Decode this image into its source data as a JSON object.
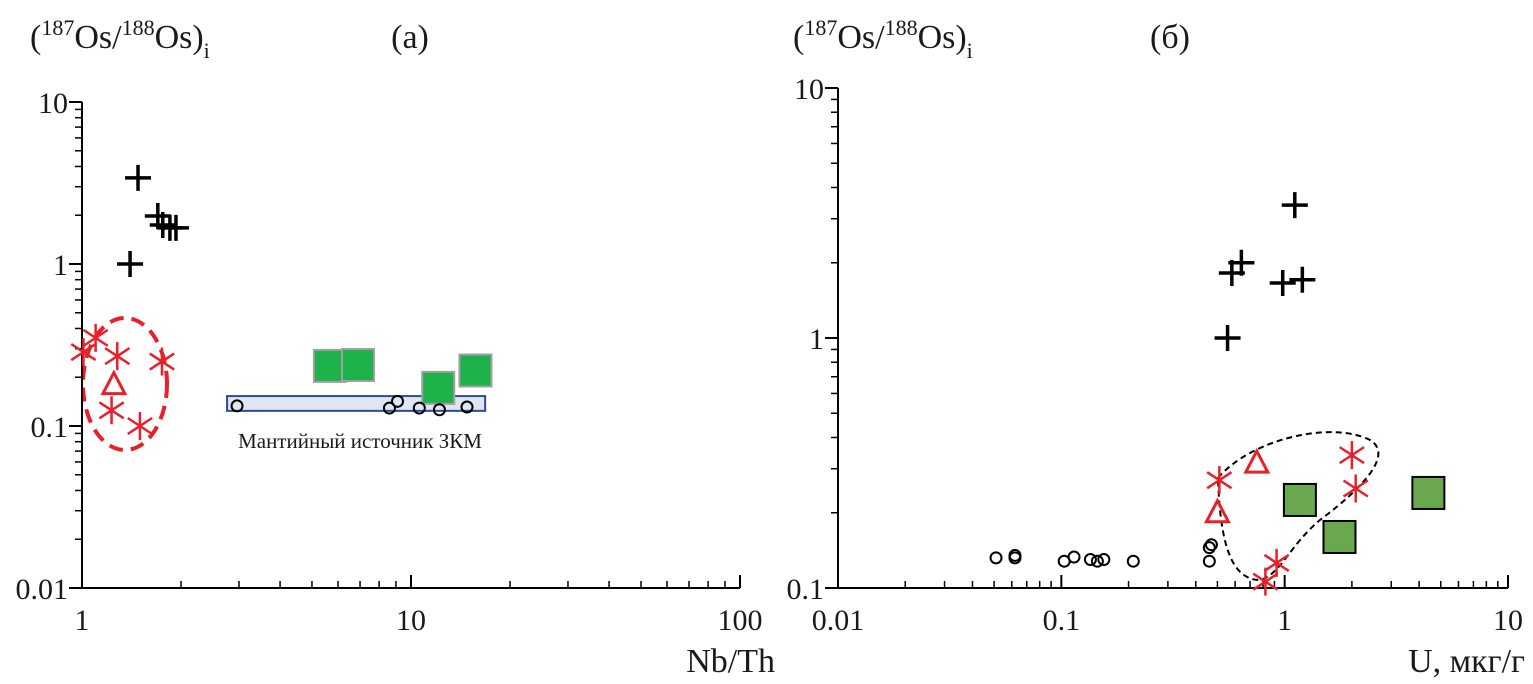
{
  "chart_data": [
    {
      "type": "scatter",
      "title": "(а)",
      "ylabel": [
        "(",
        "187",
        "Os/",
        "188",
        "Os)",
        "i"
      ],
      "xlabel": "Nb/Th",
      "log_x": true,
      "log_y": true,
      "xlim": [
        1,
        100
      ],
      "xticks": [
        1,
        10,
        100
      ],
      "ylim": [
        0.01,
        10
      ],
      "yticks": [
        0.01,
        0.1,
        1,
        10
      ],
      "annotation": "Мантийный источник  ЗКМ",
      "region": {
        "x": [
          2.76,
          16.8
        ],
        "y": [
          0.124,
          0.153
        ],
        "color": "#2e4a9a"
      },
      "series": [
        {
          "marker": "plus",
          "color": "#000000",
          "x": [
            1.48,
            1.4,
            1.7,
            1.76,
            1.85,
            1.93
          ],
          "y": [
            3.4,
            1.0,
            1.98,
            1.74,
            1.67,
            1.67
          ]
        },
        {
          "marker": "asterisk",
          "color": "#e8202a",
          "x": [
            1.01,
            1.1,
            1.28,
            1.75,
            1.23,
            1.5
          ],
          "y": [
            0.286,
            0.35,
            0.27,
            0.25,
            0.125,
            0.1
          ]
        },
        {
          "marker": "triangle",
          "color": "#e8202a",
          "x": [
            1.25
          ],
          "y": [
            0.18
          ]
        },
        {
          "marker": "square",
          "color": "#1db34a",
          "edgecolor": "#a0a0a0",
          "x": [
            5.67,
            6.9,
            12.1,
            15.7
          ],
          "y": [
            0.235,
            0.238,
            0.172,
            0.22
          ]
        },
        {
          "marker": "circle",
          "color": "#000000",
          "x": [
            2.96,
            8.6,
            9.1,
            10.6,
            12.2,
            14.8
          ],
          "y": [
            0.133,
            0.129,
            0.142,
            0.129,
            0.126,
            0.131
          ]
        }
      ]
    },
    {
      "type": "scatter",
      "title": "(б)",
      "ylabel": [
        "(",
        "187",
        "Os/",
        "188",
        "Os)",
        "i"
      ],
      "xlabel": "U, мкг/г",
      "log_x": true,
      "log_y": true,
      "xlim": [
        0.01,
        10
      ],
      "xticks": [
        0.01,
        0.1,
        1,
        10
      ],
      "ylim": [
        0.1,
        10
      ],
      "yticks": [
        0.1,
        1,
        10
      ],
      "series": [
        {
          "marker": "plus",
          "color": "#000000",
          "x": [
            1.11,
            0.64,
            0.58,
            0.98,
            1.2,
            0.555
          ],
          "y": [
            3.4,
            2.0,
            1.82,
            1.66,
            1.71,
            1.0
          ]
        },
        {
          "marker": "asterisk",
          "color": "#e8202a",
          "x": [
            0.51,
            2.0,
            2.08,
            0.92,
            0.82
          ],
          "y": [
            0.27,
            0.34,
            0.25,
            0.126,
            0.106
          ]
        },
        {
          "marker": "triangle",
          "color": "#e8202a",
          "x": [
            0.75,
            0.5
          ],
          "y": [
            0.316,
            0.2
          ]
        },
        {
          "marker": "square",
          "color": "#6aa84f",
          "edgecolor": "#000000",
          "x": [
            1.17,
            1.76,
            4.4
          ],
          "y": [
            0.225,
            0.16,
            0.24
          ]
        },
        {
          "marker": "circle",
          "color": "#000000",
          "x": [
            0.051,
            0.062,
            0.062,
            0.103,
            0.114,
            0.135,
            0.145,
            0.155,
            0.21,
            0.46,
            0.46,
            0.47
          ],
          "y": [
            0.132,
            0.132,
            0.135,
            0.128,
            0.133,
            0.13,
            0.128,
            0.13,
            0.128,
            0.128,
            0.145,
            0.149
          ]
        }
      ]
    }
  ]
}
